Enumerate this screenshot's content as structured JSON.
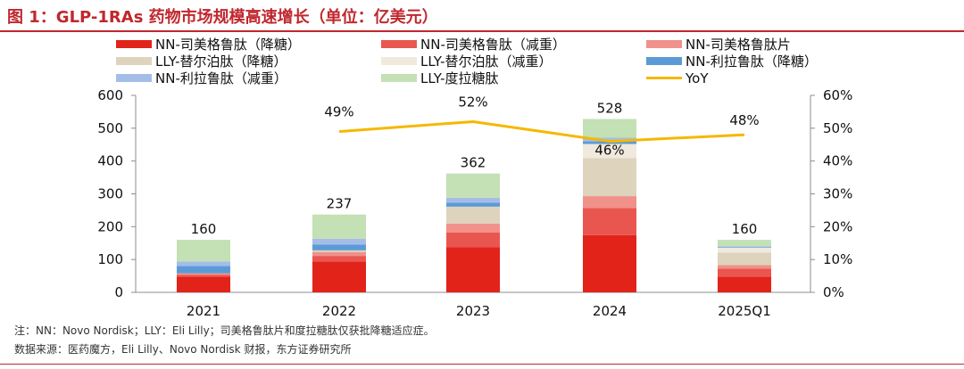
{
  "title": "图 1：GLP-1RAs 药物市场规模高速增长（单位：亿美元）",
  "notes": {
    "note": "注：NN：Novo Nordisk；LLY：Eli Lilly；司美格鲁肽片和度拉糖肽仅获批降糖适应症。",
    "source": "数据来源：医药魔方，Eli Lilly、Novo Nordisk 财报，东方证券研究所"
  },
  "colors": {
    "nn_sema_diabetes": "#e2231a",
    "nn_sema_weight": "#e9564f",
    "nn_sema_oral": "#f0918a",
    "lly_tirz_diabetes": "#ded3bd",
    "lly_tirz_weight": "#efe9de",
    "nn_lira_diabetes": "#5b9bd5",
    "nn_lira_weight": "#a4bde8",
    "lly_dula": "#c4e0b5",
    "yoy": "#f5b800"
  },
  "chart_data": {
    "type": "bar",
    "stacked": true,
    "categories": [
      "2021",
      "2022",
      "2023",
      "2024",
      "2025Q1"
    ],
    "series": [
      {
        "key": "nn_sema_diabetes",
        "name": "NN-司美格鲁肽（降糖）",
        "values": [
          48,
          94,
          138,
          174,
          48
        ]
      },
      {
        "key": "nn_sema_weight",
        "name": "NN-司美格鲁肽（减重）",
        "values": [
          5,
          17,
          44,
          83,
          24
        ]
      },
      {
        "key": "nn_sema_oral",
        "name": "NN-司美格鲁肽片",
        "values": [
          5,
          12,
          27,
          36,
          11
        ]
      },
      {
        "key": "lly_tirz_diabetes",
        "name": "LLY-替尔泊肽（降糖）",
        "values": [
          0,
          5,
          52,
          116,
          38
        ]
      },
      {
        "key": "lly_tirz_weight",
        "name": "LLY-替尔泊肽（减重）",
        "values": [
          0,
          0,
          0,
          43,
          15
        ]
      },
      {
        "key": "nn_lira_diabetes",
        "name": "NN-利拉鲁肽（降糖）",
        "values": [
          22,
          18,
          12,
          8,
          2
        ]
      },
      {
        "key": "nn_lira_weight",
        "name": "NN-利拉鲁肽（减重）",
        "values": [
          14,
          17,
          15,
          11,
          2
        ]
      },
      {
        "key": "lly_dula",
        "name": "LLY-度拉糖肽",
        "values": [
          66,
          74,
          74,
          57,
          20
        ]
      }
    ],
    "totals": [
      160,
      237,
      362,
      528,
      160
    ],
    "total_labels": [
      "160",
      "237",
      "362",
      "528",
      "160"
    ],
    "yoy": {
      "name": "YoY",
      "x": [
        "2022",
        "2023",
        "2024",
        "2025Q1"
      ],
      "values": [
        49,
        52,
        46,
        48
      ],
      "labels": [
        "49%",
        "52%",
        "46%",
        "48%"
      ]
    },
    "y_left": {
      "min": 0,
      "max": 600,
      "ticks": [
        "0",
        "100",
        "200",
        "300",
        "400",
        "500",
        "600"
      ]
    },
    "y_right": {
      "min": 0,
      "max": 60,
      "ticks": [
        "0%",
        "10%",
        "20%",
        "30%",
        "40%",
        "50%",
        "60%"
      ]
    },
    "legend": [
      {
        "label": "NN-司美格鲁肽（降糖）",
        "key": "nn_sema_diabetes",
        "kind": "bar"
      },
      {
        "label": "NN-司美格鲁肽（减重）",
        "key": "nn_sema_weight",
        "kind": "bar"
      },
      {
        "label": "NN-司美格鲁肽片",
        "key": "nn_sema_oral",
        "kind": "bar"
      },
      {
        "label": "LLY-替尔泊肽（降糖）",
        "key": "lly_tirz_diabetes",
        "kind": "bar"
      },
      {
        "label": "LLY-替尔泊肽（减重）",
        "key": "lly_tirz_weight",
        "kind": "bar"
      },
      {
        "label": "NN-利拉鲁肽（降糖）",
        "key": "nn_lira_diabetes",
        "kind": "bar"
      },
      {
        "label": "NN-利拉鲁肽（减重）",
        "key": "nn_lira_weight",
        "kind": "bar"
      },
      {
        "label": "LLY-度拉糖肽",
        "key": "lly_dula",
        "kind": "bar"
      },
      {
        "label": "YoY",
        "key": "yoy",
        "kind": "line"
      }
    ]
  }
}
